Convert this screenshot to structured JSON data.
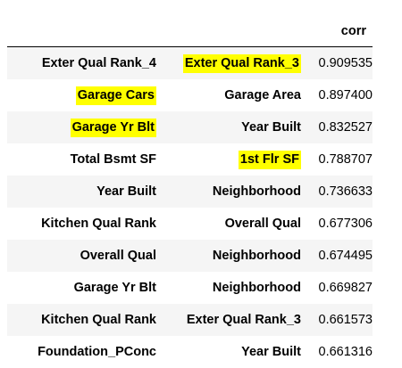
{
  "table": {
    "column_header": "corr",
    "rows": [
      {
        "level0": "Exter Qual Rank_4",
        "level1": "Exter Qual Rank_3",
        "corr": "0.909535",
        "hl0": false,
        "hl1": true
      },
      {
        "level0": "Garage Cars",
        "level1": "Garage Area",
        "corr": "0.897400",
        "hl0": true,
        "hl1": false
      },
      {
        "level0": "Garage Yr Blt",
        "level1": "Year Built",
        "corr": "0.832527",
        "hl0": true,
        "hl1": false
      },
      {
        "level0": "Total Bsmt SF",
        "level1": "1st Flr SF",
        "corr": "0.788707",
        "hl0": false,
        "hl1": true
      },
      {
        "level0": "Year Built",
        "level1": "Neighborhood",
        "corr": "0.736633",
        "hl0": false,
        "hl1": false
      },
      {
        "level0": "Kitchen Qual Rank",
        "level1": "Overall Qual",
        "corr": "0.677306",
        "hl0": false,
        "hl1": false
      },
      {
        "level0": "Overall Qual",
        "level1": "Neighborhood",
        "corr": "0.674495",
        "hl0": false,
        "hl1": false
      },
      {
        "level0": "Garage Yr Blt",
        "level1": "Neighborhood",
        "corr": "0.669827",
        "hl0": false,
        "hl1": false
      },
      {
        "level0": "Kitchen Qual Rank",
        "level1": "Exter Qual Rank_3",
        "corr": "0.661573",
        "hl0": false,
        "hl1": false
      },
      {
        "level0": "Foundation_PConc",
        "level1": "Year Built",
        "corr": "0.661316",
        "hl0": false,
        "hl1": false
      }
    ]
  },
  "colors": {
    "highlight": "#ffff00",
    "stripe": "#f5f5f5"
  }
}
